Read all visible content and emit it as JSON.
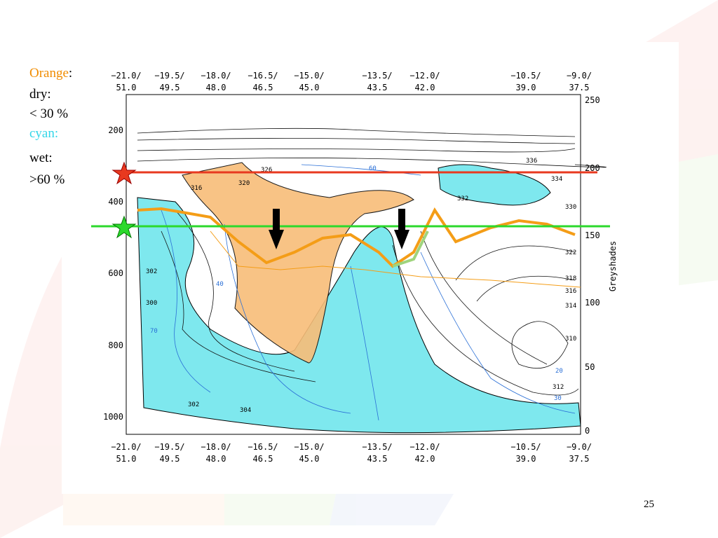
{
  "legend": {
    "orange": "Orange",
    "colon": ":",
    "dry": "dry:",
    "dry_threshold": "< 30 %",
    "cyan": "cyan:",
    "wet": "wet:",
    "wet_threshold": ">60 %"
  },
  "figure": {
    "x_labels": [
      [
        "−21.0/",
        "51.0"
      ],
      [
        "−19.5/",
        "49.5"
      ],
      [
        "−18.0/",
        "48.0"
      ],
      [
        "−16.5/",
        "46.5"
      ],
      [
        "−15.0/",
        "45.0"
      ],
      [
        "−13.5/",
        "43.5"
      ],
      [
        "−12.0/",
        "42.0"
      ],
      [
        "−10.5/",
        "39.0"
      ],
      [
        "−9.0/",
        "37.5"
      ]
    ],
    "y_left": [
      "200",
      "400",
      "600",
      "800",
      "1000"
    ],
    "y_right": [
      "250",
      "200",
      "150",
      "100",
      "50",
      "0"
    ],
    "y_right_title": "Greyshades",
    "contour_labels": [
      "336",
      "332",
      "320",
      "316",
      "330",
      "322",
      "318",
      "316",
      "314",
      "310",
      "302",
      "300",
      "302",
      "304",
      "40",
      "70",
      "60",
      "20",
      "30",
      "334",
      "326",
      "312"
    ]
  },
  "page_number": "25"
}
